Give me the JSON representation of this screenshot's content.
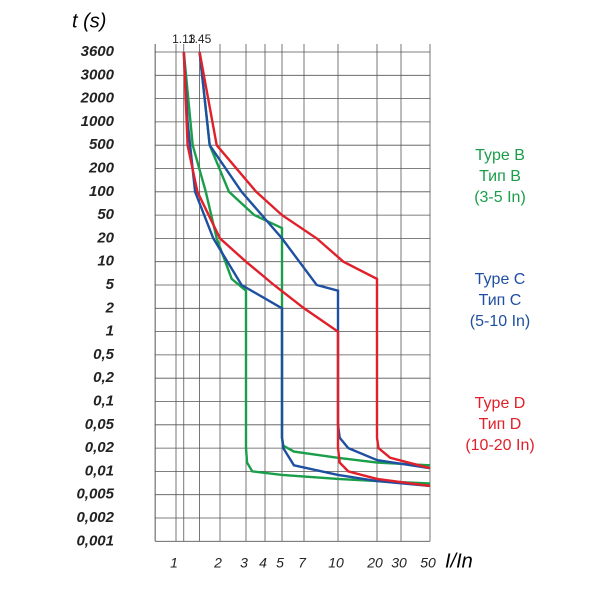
{
  "chart_data": {
    "type": "line",
    "y_label": "t (s)",
    "x_label": "I/In",
    "xlim": [
      0.72,
      50
    ],
    "ylim": [
      0.001,
      3600
    ],
    "xticks": [
      1,
      2,
      3,
      4,
      5,
      7,
      10,
      20,
      30,
      50
    ],
    "xticks_top": [
      1.13,
      1.45
    ],
    "yticks": [
      3600,
      3000,
      2000,
      1000,
      500,
      200,
      100,
      50,
      20,
      10,
      5,
      2,
      1,
      {
        "value": 0.5,
        "label": "0,5"
      },
      {
        "value": 0.2,
        "label": "0,2"
      },
      {
        "value": 0.1,
        "label": "0,1"
      },
      {
        "value": 0.05,
        "label": "0,05"
      },
      {
        "value": 0.02,
        "label": "0,02"
      },
      {
        "value": 0.01,
        "label": "0,01"
      },
      {
        "value": 0.005,
        "label": "0,005"
      },
      {
        "value": 0.002,
        "label": "0,002"
      },
      {
        "value": 0.001,
        "label": "0,001"
      }
    ],
    "grid": true,
    "series": [
      {
        "color": "#1a9e4a",
        "x": [
          1.13,
          1.3,
          1.6,
          1.9,
          2.4,
          3,
          3,
          3.05,
          3.3,
          5,
          10,
          20,
          50
        ],
        "values": [
          3600,
          500,
          100,
          20,
          6,
          4,
          0.02,
          0.013,
          0.01,
          0.009,
          0.008,
          0.0075,
          0.007
        ]
      },
      {
        "color": "#1a9e4a",
        "x": [
          1.45,
          1.7,
          2.3,
          3.4,
          5,
          5,
          5.1,
          6,
          10,
          20,
          50
        ],
        "values": [
          3600,
          500,
          100,
          50,
          30,
          0.03,
          0.022,
          0.018,
          0.015,
          0.013,
          0.012
        ]
      },
      {
        "color": "#1f4fa0",
        "x": [
          1.13,
          1.2,
          1.35,
          1.8,
          2.8,
          5,
          5,
          5.1,
          6,
          10,
          20,
          50
        ],
        "values": [
          3600,
          1000,
          100,
          20,
          5,
          2,
          0.03,
          0.02,
          0.012,
          0.009,
          0.0075,
          0.0065
        ]
      },
      {
        "color": "#1f4fa0",
        "x": [
          1.45,
          1.7,
          2.8,
          5,
          8,
          10,
          10,
          10.3,
          12,
          20,
          50
        ],
        "values": [
          3600,
          500,
          100,
          20,
          5,
          4,
          0.05,
          0.03,
          0.02,
          0.014,
          0.011
        ]
      },
      {
        "color": "#e0202a",
        "x": [
          1.13,
          1.2,
          1.4,
          2,
          3,
          4.5,
          7,
          10,
          10,
          10.3,
          12,
          20,
          50
        ],
        "values": [
          3600,
          500,
          100,
          20,
          10,
          5,
          2,
          1,
          0.02,
          0.013,
          0.01,
          0.008,
          0.0065
        ]
      },
      {
        "color": "#e0202a",
        "x": [
          1.45,
          1.9,
          3.5,
          5,
          8,
          11,
          20,
          20,
          20.5,
          25,
          50
        ],
        "values": [
          3600,
          500,
          100,
          50,
          20,
          10,
          6,
          0.03,
          0.02,
          0.015,
          0.011
        ]
      }
    ],
    "annotations": [
      [
        "Type B",
        "Тип B",
        "(3-5 In)"
      ],
      [
        "Type C",
        "Тип C",
        "(5-10 In)"
      ],
      [
        "Type D",
        "Тип D",
        "(10-20 In)"
      ]
    ]
  }
}
